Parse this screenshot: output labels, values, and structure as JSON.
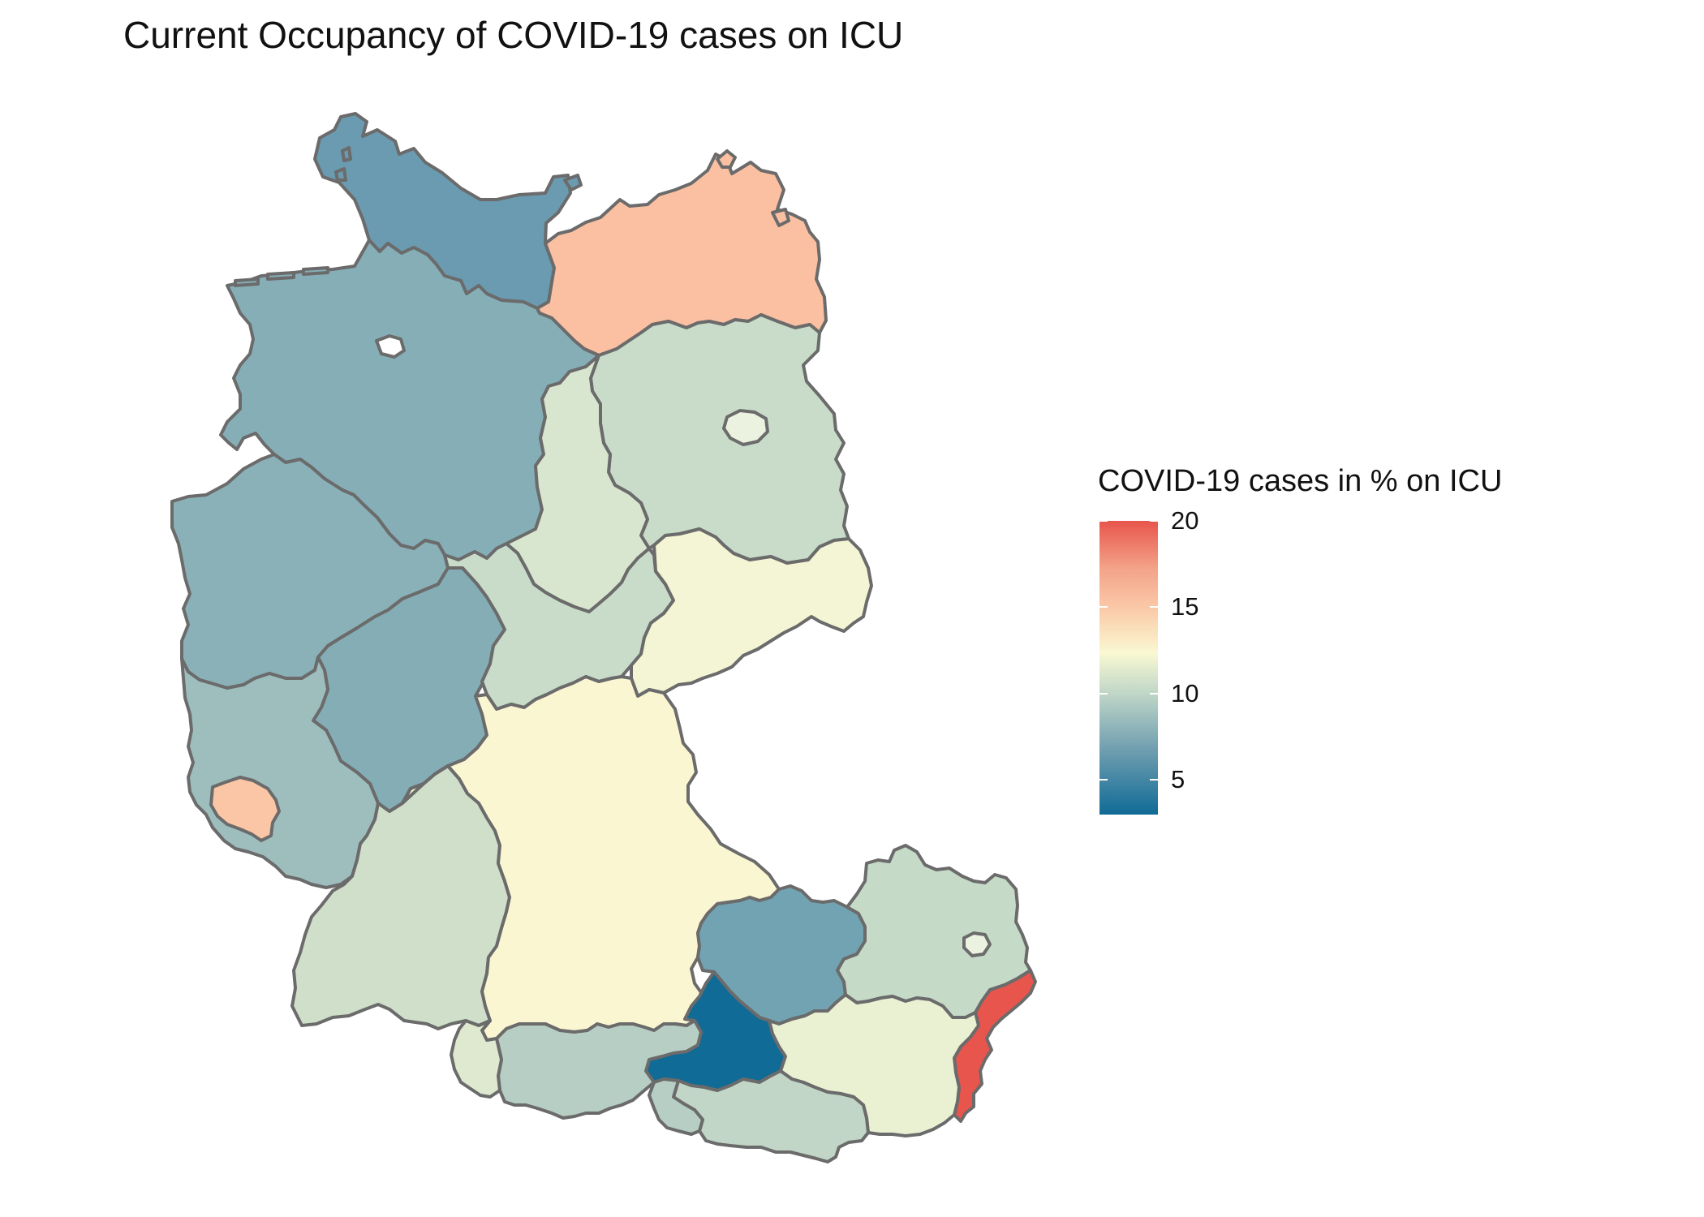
{
  "title": "Current Occupancy of COVID-19 cases on ICU",
  "legend": {
    "title": "COVID-19 cases in % on ICU",
    "ticks": [
      "20",
      "15",
      "10",
      "5"
    ],
    "tick_values": [
      20,
      15,
      10,
      5
    ],
    "range": [
      3,
      20
    ],
    "colors": {
      "low": "#106b96",
      "mid": "#f9f8d2",
      "high": "#e8554c"
    }
  },
  "regions": [
    {
      "name": "Schleswig-Holstein",
      "value": 6.5,
      "color": "#6a9bb0"
    },
    {
      "name": "Mecklenburg-Vorpommern",
      "value": 15.5,
      "color": "#fbc0a2"
    },
    {
      "name": "Niedersachsen",
      "value": 7.5,
      "color": "#86aeb7"
    },
    {
      "name": "Brandenburg",
      "value": 10,
      "color": "#c8dcc9"
    },
    {
      "name": "Sachsen-Anhalt",
      "value": 11,
      "color": "#d9e6cf"
    },
    {
      "name": "Nordrhein-Westfalen",
      "value": 7.8,
      "color": "#8bb1b8"
    },
    {
      "name": "Hessen",
      "value": 7.3,
      "color": "#84adb6"
    },
    {
      "name": "Thüringen",
      "value": 9.8,
      "color": "#c8dcc9"
    },
    {
      "name": "Sachsen",
      "value": 12,
      "color": "#f3f5d4"
    },
    {
      "name": "Rheinland-Pfalz",
      "value": 8.5,
      "color": "#9ebebe"
    },
    {
      "name": "Saarland",
      "value": 15.3,
      "color": "#fbc6a5"
    },
    {
      "name": "Baden-Württemberg",
      "value": 10.3,
      "color": "#cfdfca"
    },
    {
      "name": "Bayern",
      "value": 12.5,
      "color": "#fbf6d2"
    },
    {
      "name": "Oberösterreich",
      "value": 6.8,
      "color": "#72a3b2"
    },
    {
      "name": "Niederösterreich",
      "value": 10,
      "color": "#c6dac8"
    },
    {
      "name": "Burgenland",
      "value": 19.5,
      "color": "#e8554c"
    },
    {
      "name": "Salzburg",
      "value": 3.2,
      "color": "#106b96"
    },
    {
      "name": "Tirol",
      "value": 9.3,
      "color": "#b6cec3"
    },
    {
      "name": "Vorarlberg",
      "value": 11,
      "color": "#dee9cf"
    },
    {
      "name": "Steiermark",
      "value": 11.8,
      "color": "#eaf1d3"
    },
    {
      "name": "Kärnten",
      "value": 9.8,
      "color": "#c1d6c7"
    },
    {
      "name": "Osttirol",
      "value": 9.3,
      "color": "#b6cec3"
    }
  ]
}
